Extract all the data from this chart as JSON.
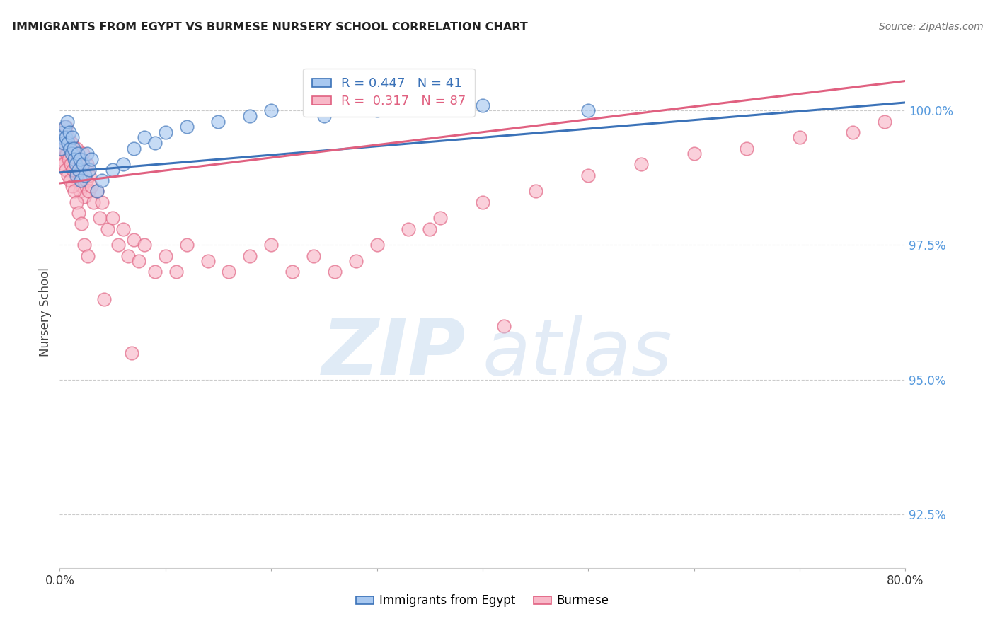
{
  "title": "IMMIGRANTS FROM EGYPT VS BURMESE NURSERY SCHOOL CORRELATION CHART",
  "source": "Source: ZipAtlas.com",
  "ylabel": "Nursery School",
  "xlim": [
    0.0,
    80.0
  ],
  "ylim": [
    91.5,
    101.0
  ],
  "legend_R_egypt": "R = 0.447",
  "legend_N_egypt": "N = 41",
  "legend_R_burmese": "R = 0.317",
  "legend_N_burmese": "N = 87",
  "egypt_color": "#A8C8F0",
  "burmese_color": "#F8B8C8",
  "egypt_line_color": "#3B72B8",
  "burmese_line_color": "#E06080",
  "background_color": "#FFFFFF",
  "grid_color": "#CCCCCC",
  "title_color": "#222222",
  "right_tick_color": "#5599DD",
  "egypt_x": [
    0.1,
    0.2,
    0.3,
    0.4,
    0.5,
    0.6,
    0.7,
    0.8,
    0.9,
    1.0,
    1.1,
    1.2,
    1.3,
    1.4,
    1.5,
    1.6,
    1.7,
    1.8,
    1.9,
    2.0,
    2.2,
    2.4,
    2.6,
    2.8,
    3.0,
    3.5,
    4.0,
    5.0,
    6.0,
    7.0,
    8.0,
    9.0,
    10.0,
    12.0,
    15.0,
    18.0,
    20.0,
    25.0,
    30.0,
    40.0,
    50.0
  ],
  "egypt_y": [
    99.3,
    99.5,
    99.6,
    99.4,
    99.7,
    99.5,
    99.8,
    99.4,
    99.6,
    99.3,
    99.2,
    99.5,
    99.3,
    99.1,
    99.0,
    98.8,
    99.2,
    98.9,
    99.1,
    98.7,
    99.0,
    98.8,
    99.2,
    98.9,
    99.1,
    98.5,
    98.7,
    98.9,
    99.0,
    99.3,
    99.5,
    99.4,
    99.6,
    99.7,
    99.8,
    99.9,
    100.0,
    99.9,
    100.0,
    100.1,
    100.0
  ],
  "burmese_x": [
    0.1,
    0.2,
    0.3,
    0.4,
    0.5,
    0.6,
    0.7,
    0.8,
    0.9,
    1.0,
    1.1,
    1.2,
    1.3,
    1.4,
    1.5,
    1.6,
    1.7,
    1.8,
    1.9,
    2.0,
    2.1,
    2.2,
    2.3,
    2.4,
    2.5,
    2.6,
    2.7,
    2.8,
    3.0,
    3.2,
    3.5,
    3.8,
    4.0,
    4.5,
    5.0,
    5.5,
    6.0,
    6.5,
    7.0,
    7.5,
    8.0,
    9.0,
    10.0,
    11.0,
    12.0,
    14.0,
    16.0,
    18.0,
    20.0,
    22.0,
    24.0,
    26.0,
    28.0,
    30.0,
    33.0,
    36.0,
    40.0,
    45.0,
    50.0,
    55.0,
    60.0,
    65.0,
    70.0,
    75.0,
    78.0,
    0.15,
    0.25,
    0.35,
    0.45,
    0.55,
    0.65,
    0.75,
    0.85,
    0.95,
    1.05,
    1.15,
    1.25,
    1.35,
    1.55,
    1.75,
    2.05,
    2.35,
    2.65,
    4.2,
    6.8,
    35.0,
    42.0
  ],
  "burmese_y": [
    99.2,
    99.5,
    99.3,
    99.6,
    99.4,
    99.7,
    99.2,
    99.5,
    99.3,
    99.0,
    99.4,
    99.1,
    98.9,
    99.2,
    98.8,
    99.3,
    98.7,
    99.0,
    98.5,
    99.1,
    98.6,
    99.2,
    98.4,
    98.9,
    98.7,
    99.0,
    98.5,
    98.8,
    98.6,
    98.3,
    98.5,
    98.0,
    98.3,
    97.8,
    98.0,
    97.5,
    97.8,
    97.3,
    97.6,
    97.2,
    97.5,
    97.0,
    97.3,
    97.0,
    97.5,
    97.2,
    97.0,
    97.3,
    97.5,
    97.0,
    97.3,
    97.0,
    97.2,
    97.5,
    97.8,
    98.0,
    98.3,
    98.5,
    98.8,
    99.0,
    99.2,
    99.3,
    99.5,
    99.6,
    99.8,
    99.1,
    99.4,
    99.0,
    99.3,
    98.9,
    99.2,
    98.8,
    99.1,
    98.7,
    99.0,
    98.6,
    98.9,
    98.5,
    98.3,
    98.1,
    97.9,
    97.5,
    97.3,
    96.5,
    95.5,
    97.8,
    96.0
  ],
  "watermark_zip_color": "#C8DCF0",
  "watermark_atlas_color": "#C0D4EC",
  "ytick_positions": [
    92.5,
    95.0,
    97.5,
    100.0
  ],
  "ytick_labels": [
    "92.5%",
    "95.0%",
    "97.5%",
    "100.0%"
  ]
}
